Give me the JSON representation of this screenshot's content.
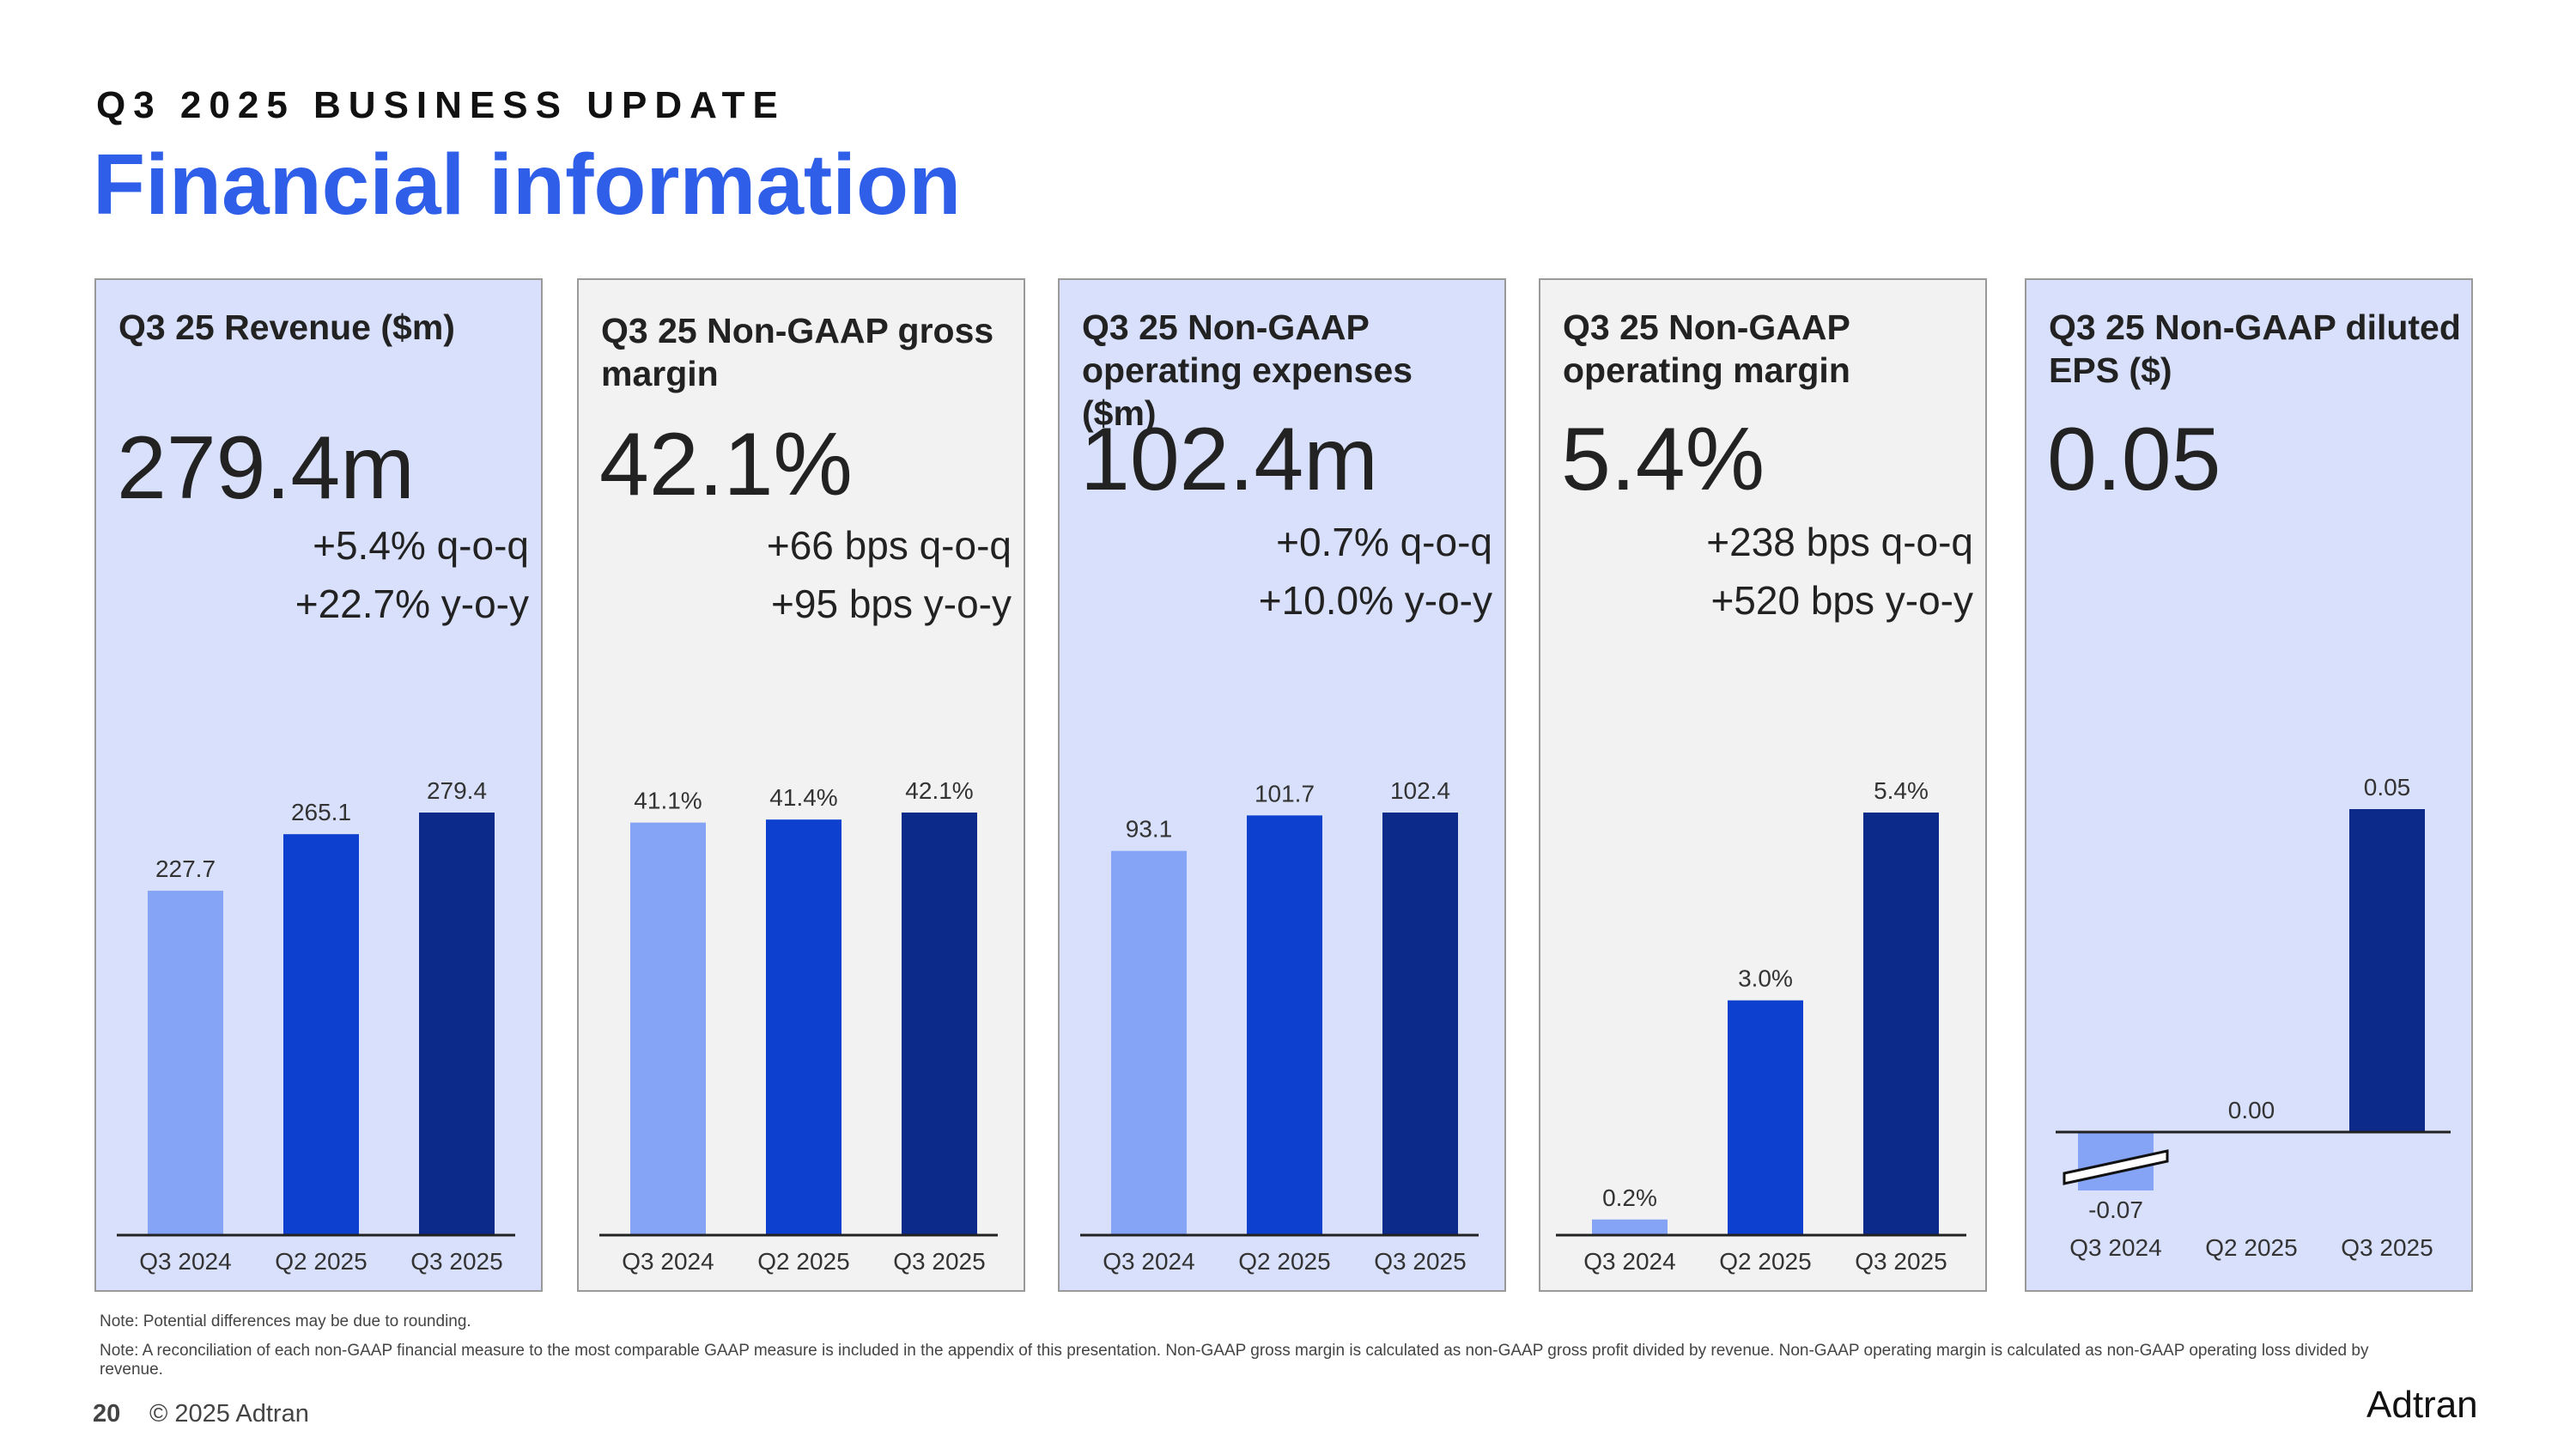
{
  "header": {
    "eyebrow": "Q3 2025 BUSINESS UPDATE",
    "title": "Financial information"
  },
  "colors": {
    "title": "#2f5fe8",
    "bar_light": "#86a4f5",
    "bar_mid": "#0d40cf",
    "bar_dark": "#0b2a8a",
    "panel_blue": "#d8e0fb",
    "panel_gray": "#f2f2f2"
  },
  "panels": [
    {
      "title": "Q3 25 Revenue ($m)",
      "value": "279.4m",
      "change1": "+5.4% q-o-q",
      "change2": "+22.7% y-o-y"
    },
    {
      "title": "Q3 25 Non-GAAP gross margin",
      "value": "42.1%",
      "change1": "+66 bps q-o-q",
      "change2": "+95 bps y-o-y"
    },
    {
      "title": "Q3 25 Non-GAAP operating expenses ($m)",
      "value": "102.4m",
      "change1": "+0.7% q-o-q",
      "change2": "+10.0% y-o-y"
    },
    {
      "title": "Q3 25 Non-GAAP operating margin",
      "value": "5.4%",
      "change1": "+238 bps q-o-q",
      "change2": "+520 bps y-o-y"
    },
    {
      "title": "Q3 25 Non-GAAP diluted EPS ($)",
      "value": "0.05",
      "change1": "",
      "change2": ""
    }
  ],
  "chart_data": [
    {
      "type": "bar",
      "title": "Q3 25 Revenue ($m)",
      "categories": [
        "Q3 2024",
        "Q2 2025",
        "Q3 2025"
      ],
      "values": [
        227.7,
        265.1,
        279.4
      ],
      "labels": [
        "227.7",
        "265.1",
        "279.4"
      ],
      "ylim": [
        0,
        279.4
      ]
    },
    {
      "type": "bar",
      "title": "Q3 25 Non-GAAP gross margin",
      "categories": [
        "Q3 2024",
        "Q2 2025",
        "Q3 2025"
      ],
      "values": [
        41.1,
        41.4,
        42.1
      ],
      "labels": [
        "41.1%",
        "41.4%",
        "42.1%"
      ],
      "ylim": [
        0,
        42.1
      ]
    },
    {
      "type": "bar",
      "title": "Q3 25 Non-GAAP operating expenses ($m)",
      "categories": [
        "Q3 2024",
        "Q2 2025",
        "Q3 2025"
      ],
      "values": [
        93.1,
        101.7,
        102.4
      ],
      "labels": [
        "93.1",
        "101.7",
        "102.4"
      ],
      "ylim": [
        0,
        102.4
      ]
    },
    {
      "type": "bar",
      "title": "Q3 25 Non-GAAP operating margin",
      "categories": [
        "Q3 2024",
        "Q2 2025",
        "Q3 2025"
      ],
      "values": [
        0.2,
        3.0,
        5.4
      ],
      "labels": [
        "0.2%",
        "3.0%",
        "5.4%"
      ],
      "ylim": [
        0,
        5.4
      ]
    },
    {
      "type": "bar",
      "title": "Q3 25 Non-GAAP diluted EPS ($)",
      "categories": [
        "Q3 2024",
        "Q2 2025",
        "Q3 2025"
      ],
      "values": [
        -0.07,
        0.0,
        0.05
      ],
      "labels": [
        "-0.07",
        "0.00",
        "0.05"
      ],
      "ylim": [
        -0.07,
        0.05
      ],
      "axis_break": "Q3 2024"
    }
  ],
  "footer": {
    "note1": "Note: Potential differences may be due to rounding.",
    "note2": "Note: A reconciliation of each non-GAAP financial measure to the most comparable GAAP measure is included in the appendix of this presentation. Non-GAAP gross margin is calculated as non-GAAP gross profit divided by revenue. Non-GAAP operating margin is calculated as non-GAAP operating loss divided by revenue.",
    "page": "20",
    "copyright": "© 2025 Adtran",
    "logo": "Adtran"
  }
}
